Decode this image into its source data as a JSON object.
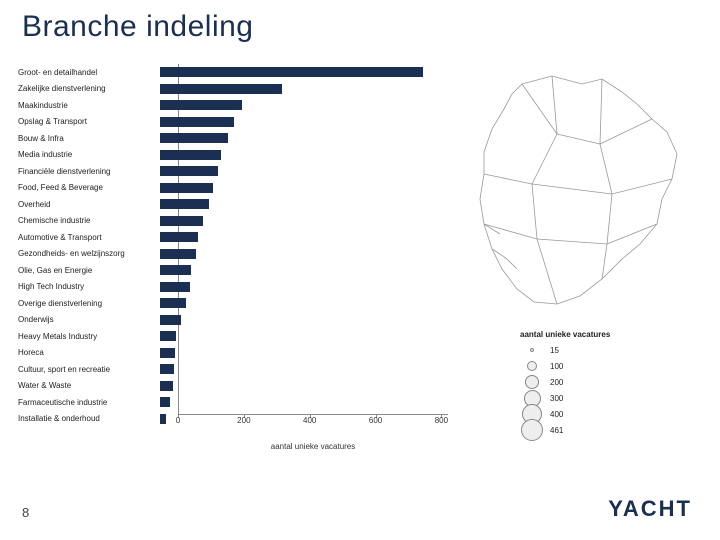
{
  "title": "Branche indeling",
  "page_number": "8",
  "logo_text": "YACHT",
  "colors": {
    "title": "#1a2f52",
    "bar_fill": "#1a2f52",
    "background": "#ffffff",
    "axis": "#888888",
    "text": "#222222",
    "logo": "#1a2f52"
  },
  "typography": {
    "title_fontsize": 30,
    "label_fontsize": 8,
    "logo_fontsize": 22
  },
  "chart": {
    "type": "bar-horizontal",
    "x_label": "aantal unieke vacatures",
    "x_ticks": [
      0,
      200,
      400,
      600,
      800
    ],
    "xlim": [
      0,
      820
    ],
    "bar_color": "#1a2f52",
    "categories": [
      {
        "label": "Groot- en detailhandel",
        "value": 800
      },
      {
        "label": "Zakelijke dienstverlening",
        "value": 370
      },
      {
        "label": "Maakindustrie",
        "value": 250
      },
      {
        "label": "Opslag & Transport",
        "value": 225
      },
      {
        "label": "Bouw & Infra",
        "value": 205
      },
      {
        "label": "Media industrie",
        "value": 185
      },
      {
        "label": "Financiële dienstverlening",
        "value": 175
      },
      {
        "label": "Food, Feed & Beverage",
        "value": 160
      },
      {
        "label": "Overheid",
        "value": 150
      },
      {
        "label": "Chemische industrie",
        "value": 130
      },
      {
        "label": "Automotive & Transport",
        "value": 115
      },
      {
        "label": "Gezondheids- en welzijnszorg",
        "value": 110
      },
      {
        "label": "Olie, Gas en Energie",
        "value": 95
      },
      {
        "label": "High Tech Industry",
        "value": 90
      },
      {
        "label": "Overige dienstverlening",
        "value": 80
      },
      {
        "label": "Onderwijs",
        "value": 65
      },
      {
        "label": "Heavy Metals Industry",
        "value": 50
      },
      {
        "label": "Horeca",
        "value": 45
      },
      {
        "label": "Cultuur, sport en recreatie",
        "value": 42
      },
      {
        "label": "Water & Waste",
        "value": 38
      },
      {
        "label": "Farmaceutische industrie",
        "value": 30
      },
      {
        "label": "Installatie & onderhoud",
        "value": 18
      }
    ]
  },
  "map": {
    "description": "Netherlands regional map outline",
    "stroke": "#999999",
    "fill": "#ffffff"
  },
  "legend": {
    "title": "aantal unieke vacatures",
    "items": [
      {
        "value": "15",
        "diameter": 4
      },
      {
        "value": "100",
        "diameter": 10
      },
      {
        "value": "200",
        "diameter": 14
      },
      {
        "value": "300",
        "diameter": 17
      },
      {
        "value": "400",
        "diameter": 20
      },
      {
        "value": "461",
        "diameter": 22
      }
    ]
  }
}
